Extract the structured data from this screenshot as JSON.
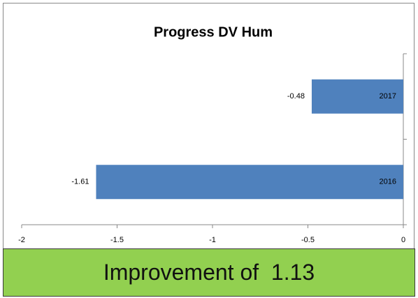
{
  "chart_data": {
    "type": "hbar",
    "title": "Progress DV Hum",
    "categories": [
      "2016",
      "2017"
    ],
    "values": [
      -1.61,
      -0.48
    ],
    "color": "#4f81bd",
    "xlim": [
      -2,
      0
    ],
    "xticks": [
      -2,
      -1.5,
      -1,
      -0.5,
      0
    ]
  },
  "banner": {
    "text": "Improvement of  1.13",
    "color": "#92d050"
  }
}
